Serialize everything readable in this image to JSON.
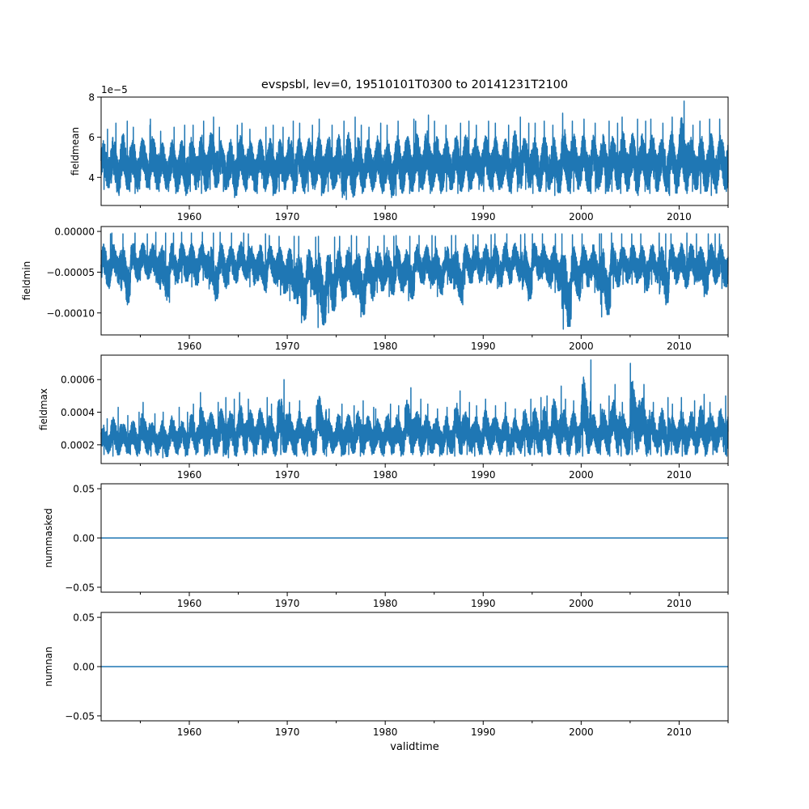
{
  "chart_data": {
    "type": "line",
    "title": "evspsbl, lev=0, 19510101T0300 to 20141231T2100",
    "xlabel": "validtime",
    "xlim": [
      1951.0,
      2015.0
    ],
    "x_major_ticks": [
      1960,
      1970,
      1980,
      1990,
      2000,
      2010
    ],
    "x_minor_ticks": [
      1955,
      1965,
      1975,
      1985,
      1995,
      2005,
      2015
    ],
    "x_tick_labels": [
      "1960",
      "1970",
      "1980",
      "1990",
      "2000",
      "2010"
    ],
    "color": "#1f77b4",
    "years": [
      1951,
      2014
    ],
    "panels": [
      {
        "ylabel": "fieldmean",
        "offset_text": "1e−5",
        "scale": 1e-05,
        "ylim": [
          2.6,
          8.0
        ],
        "yticks": [
          4,
          6,
          8
        ],
        "ytick_labels": [
          "4",
          "6",
          "8"
        ],
        "yearly_max": [
          6.4,
          6.7,
          6.8,
          6.5,
          6.6,
          6.9,
          6.3,
          6.5,
          6.6,
          6.6,
          6.8,
          7.0,
          6.5,
          6.6,
          6.7,
          6.4,
          6.5,
          6.6,
          6.5,
          6.8,
          6.7,
          6.6,
          6.9,
          6.6,
          6.8,
          7.0,
          6.6,
          6.5,
          6.7,
          6.6,
          6.8,
          6.9,
          6.8,
          7.1,
          6.8,
          6.6,
          6.7,
          6.8,
          6.6,
          6.8,
          6.7,
          6.6,
          7.0,
          6.7,
          6.7,
          6.8,
          6.6,
          7.2,
          6.8,
          6.9,
          6.7,
          6.8,
          6.7,
          7.0,
          6.9,
          6.8,
          6.9,
          6.7,
          7.0,
          7.8,
          6.6,
          6.8,
          6.9,
          6.9
        ],
        "yearly_min": [
          3.4,
          3.1,
          3.3,
          3.2,
          3.4,
          3.3,
          3.3,
          3.2,
          3.1,
          3.3,
          3.2,
          3.4,
          3.3,
          3.0,
          3.3,
          3.2,
          3.3,
          3.1,
          3.3,
          3.2,
          3.2,
          3.3,
          3.1,
          3.3,
          3.0,
          2.9,
          3.2,
          3.3,
          3.2,
          3.0,
          3.1,
          3.2,
          3.3,
          3.2,
          3.2,
          3.3,
          3.2,
          3.3,
          3.4,
          3.3,
          3.3,
          3.2,
          3.3,
          3.4,
          3.2,
          3.3,
          3.1,
          3.2,
          3.3,
          3.2,
          3.3,
          3.2,
          3.3,
          3.2,
          3.1,
          3.3,
          3.2,
          3.2,
          3.1,
          3.2,
          3.3,
          3.2,
          3.1,
          3.3
        ]
      },
      {
        "ylabel": "fieldmin",
        "offset_text": "",
        "scale": 1e-05,
        "ylim": [
          -12.7,
          0.6
        ],
        "yticks": [
          0,
          -5,
          -10
        ],
        "ytick_labels": [
          "0.00000",
          "−0.00005",
          "−0.00010"
        ],
        "yearly_max": [
          -0.3,
          -0.2,
          -0.3,
          -0.2,
          -0.3,
          -0.1,
          -0.2,
          -0.2,
          -0.1,
          -0.2,
          -0.1,
          -0.2,
          -0.1,
          -0.2,
          -0.2,
          -0.3,
          -0.3,
          -0.5,
          -0.6,
          -0.6,
          -0.6,
          -0.7,
          -0.6,
          -0.7,
          -0.6,
          -0.5,
          -0.6,
          -0.6,
          -0.5,
          -0.6,
          -0.5,
          -0.6,
          -0.5,
          -0.5,
          -0.6,
          -0.5,
          -0.5,
          -0.4,
          -0.4,
          -0.4,
          -0.3,
          -0.3,
          -0.4,
          -0.3,
          -0.3,
          -0.3,
          -0.3,
          -0.3,
          -0.4,
          -0.3,
          -0.3,
          -0.3,
          -0.2,
          -0.3,
          -0.3,
          -0.3,
          -0.2,
          -0.3,
          -0.3,
          -0.2,
          -0.3,
          -0.3,
          -0.3,
          -0.3
        ],
        "yearly_min": [
          -7.0,
          -6.5,
          -9.0,
          -6.2,
          -6.0,
          -6.5,
          -8.7,
          -6.5,
          -6.3,
          -6.8,
          -6.0,
          -8.5,
          -7.0,
          -6.5,
          -6.0,
          -6.8,
          -7.5,
          -6.5,
          -7.8,
          -8.5,
          -11.2,
          -8.0,
          -11.8,
          -10.0,
          -8.5,
          -8.0,
          -10.5,
          -8.5,
          -7.5,
          -8.0,
          -7.5,
          -8.5,
          -6.5,
          -7.0,
          -8.0,
          -6.5,
          -9.0,
          -6.5,
          -6.3,
          -6.5,
          -7.0,
          -6.5,
          -6.2,
          -8.5,
          -6.0,
          -7.0,
          -7.5,
          -12.0,
          -8.5,
          -7.0,
          -7.5,
          -10.5,
          -7.0,
          -6.5,
          -6.5,
          -7.5,
          -6.5,
          -9.0,
          -6.5,
          -7.0,
          -6.5,
          -8.0,
          -6.5,
          -7.0
        ]
      },
      {
        "ylabel": "fieldmax",
        "offset_text": "",
        "scale": 0.0001,
        "ylim": [
          0.85,
          7.5
        ],
        "yticks": [
          2,
          4,
          6
        ],
        "ytick_labels": [
          "0.0002",
          "0.0004",
          "0.0006"
        ],
        "yearly_max": [
          3.6,
          4.3,
          3.8,
          4.0,
          4.6,
          3.9,
          4.0,
          4.3,
          4.0,
          4.5,
          5.2,
          4.6,
          4.9,
          4.8,
          5.2,
          4.8,
          4.9,
          4.5,
          6.0,
          4.6,
          4.7,
          4.4,
          5.8,
          4.2,
          4.5,
          4.4,
          4.7,
          4.3,
          4.2,
          4.5,
          4.4,
          5.5,
          4.8,
          4.5,
          4.2,
          4.3,
          5.3,
          4.6,
          4.4,
          4.8,
          4.4,
          4.6,
          4.2,
          4.8,
          4.9,
          5.0,
          5.6,
          4.8,
          4.7,
          7.2,
          4.5,
          5.0,
          5.7,
          4.6,
          7.0,
          5.7,
          4.6,
          4.9,
          4.5,
          4.9,
          4.7,
          5.1,
          4.6,
          5.0
        ],
        "yearly_min": [
          1.4,
          1.3,
          1.4,
          1.3,
          1.4,
          1.3,
          1.2,
          1.4,
          1.3,
          1.4,
          1.3,
          1.4,
          1.3,
          1.2,
          1.4,
          1.3,
          1.4,
          1.3,
          1.4,
          1.3,
          1.4,
          1.3,
          1.4,
          1.3,
          1.3,
          1.4,
          1.3,
          1.4,
          1.3,
          1.4,
          1.3,
          1.4,
          1.3,
          1.4,
          1.3,
          1.4,
          1.3,
          1.4,
          1.3,
          1.4,
          1.4,
          1.3,
          1.4,
          1.3,
          1.4,
          1.3,
          1.4,
          1.3,
          1.4,
          1.3,
          1.4,
          1.3,
          1.4,
          1.3,
          1.4,
          1.3,
          1.4,
          1.3,
          1.4,
          1.3,
          1.4,
          1.3,
          1.4,
          1.3
        ]
      },
      {
        "ylabel": "nummasked",
        "offset_text": "",
        "scale": 1,
        "ylim": [
          -0.055,
          0.055
        ],
        "yticks": [
          0.05,
          0.0,
          -0.05
        ],
        "ytick_labels": [
          "0.05",
          "0.00",
          "−0.05"
        ],
        "constant": 0
      },
      {
        "ylabel": "numnan",
        "offset_text": "",
        "scale": 1,
        "ylim": [
          -0.055,
          0.055
        ],
        "yticks": [
          0.05,
          0.0,
          -0.05
        ],
        "ytick_labels": [
          "0.05",
          "0.00",
          "−0.05"
        ],
        "constant": 0
      }
    ]
  }
}
